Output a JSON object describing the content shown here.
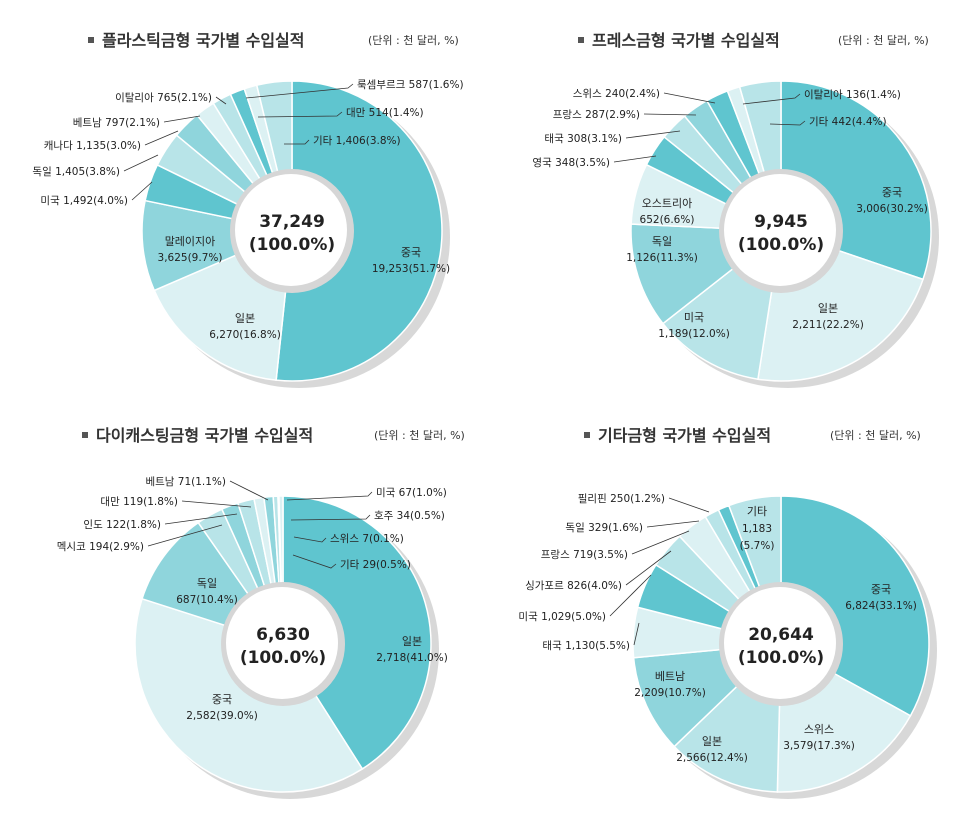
{
  "colors": {
    "dark": "#5fc5cf",
    "mid": "#8fd5dc",
    "light": "#b8e4e8",
    "pale": "#dcf1f3",
    "shadow": "#d8d8d8",
    "leader": "#333333"
  },
  "chart_data": [
    {
      "type": "pie",
      "title": "플라스틱금형 국가별 수입실적",
      "unit": "(단위 : 천 달러, %)",
      "total_value": "37,249",
      "total_pct": "(100.0%)",
      "slices": [
        {
          "name": "중국",
          "value": 19253,
          "pct": 51.7,
          "value_label": "19,253(51.7%)",
          "color": "dark"
        },
        {
          "name": "일본",
          "value": 6270,
          "pct": 16.8,
          "value_label": "6,270(16.8%)",
          "color": "pale"
        },
        {
          "name": "말레이지아",
          "value": 3625,
          "pct": 9.7,
          "value_label": "3,625(9.7%)",
          "color": "mid"
        },
        {
          "name": "미국",
          "value": 1492,
          "pct": 4.0,
          "label": "미국 1,492(4.0%)",
          "color": "dark"
        },
        {
          "name": "독일",
          "value": 1405,
          "pct": 3.8,
          "label": "독일 1,405(3.8%)",
          "color": "light"
        },
        {
          "name": "캐나다",
          "value": 1135,
          "pct": 3.0,
          "label": "캐나다 1,135(3.0%)",
          "color": "mid"
        },
        {
          "name": "베트남",
          "value": 797,
          "pct": 2.1,
          "label": "베트남 797(2.1%)",
          "color": "pale"
        },
        {
          "name": "이탈리아",
          "value": 765,
          "pct": 2.1,
          "label": "이탈리아 765(2.1%)",
          "color": "light"
        },
        {
          "name": "룩셈부르크",
          "value": 587,
          "pct": 1.6,
          "label": "룩셈부르크 587(1.6%)",
          "color": "dark"
        },
        {
          "name": "대만",
          "value": 514,
          "pct": 1.4,
          "label": "대만 514(1.4%)",
          "color": "pale"
        },
        {
          "name": "기타",
          "value": 1406,
          "pct": 3.8,
          "label": "기타 1,406(3.8%)",
          "color": "light"
        }
      ]
    },
    {
      "type": "pie",
      "title": "프레스금형 국가별 수입실적",
      "unit": "(단위 : 천 달러, %)",
      "total_value": "9,945",
      "total_pct": "(100.0%)",
      "slices": [
        {
          "name": "중국",
          "value": 3006,
          "pct": 30.2,
          "value_label": "3,006(30.2%)",
          "color": "dark"
        },
        {
          "name": "일본",
          "value": 2211,
          "pct": 22.2,
          "value_label": "2,211(22.2%)",
          "color": "pale"
        },
        {
          "name": "미국",
          "value": 1189,
          "pct": 12.0,
          "value_label": "1,189(12.0%)",
          "color": "light"
        },
        {
          "name": "독일",
          "value": 1126,
          "pct": 11.3,
          "value_label": "1,126(11.3%)",
          "color": "mid"
        },
        {
          "name": "오스트리아",
          "value": 652,
          "pct": 6.6,
          "value_label": "652(6.6%)",
          "color": "pale"
        },
        {
          "name": "영국",
          "value": 348,
          "pct": 3.5,
          "label": "영국 348(3.5%)",
          "color": "dark"
        },
        {
          "name": "태국",
          "value": 308,
          "pct": 3.1,
          "label": "태국 308(3.1%)",
          "color": "light"
        },
        {
          "name": "프랑스",
          "value": 287,
          "pct": 2.9,
          "label": "프랑스 287(2.9%)",
          "color": "mid"
        },
        {
          "name": "스위스",
          "value": 240,
          "pct": 2.4,
          "label": "스위스 240(2.4%)",
          "color": "dark"
        },
        {
          "name": "이탈리아",
          "value": 136,
          "pct": 1.4,
          "label": "이탈리아 136(1.4%)",
          "color": "pale"
        },
        {
          "name": "기타",
          "value": 442,
          "pct": 4.4,
          "label": "기타 442(4.4%)",
          "color": "light"
        }
      ]
    },
    {
      "type": "pie",
      "title": "다이캐스팅금형 국가별 수입실적",
      "unit": "(단위 : 천 달러, %)",
      "total_value": "6,630",
      "total_pct": "(100.0%)",
      "slices": [
        {
          "name": "일본",
          "value": 2718,
          "pct": 41.0,
          "value_label": "2,718(41.0%)",
          "color": "dark"
        },
        {
          "name": "중국",
          "value": 2582,
          "pct": 39.0,
          "value_label": "2,582(39.0%)",
          "color": "pale"
        },
        {
          "name": "독일",
          "value": 687,
          "pct": 10.4,
          "value_label": "687(10.4%)",
          "color": "mid"
        },
        {
          "name": "멕시코",
          "value": 194,
          "pct": 2.9,
          "label": "멕시코 194(2.9%)",
          "color": "light"
        },
        {
          "name": "인도",
          "value": 122,
          "pct": 1.8,
          "label": "인도 122(1.8%)",
          "color": "mid"
        },
        {
          "name": "대만",
          "value": 119,
          "pct": 1.8,
          "label": "대만 119(1.8%)",
          "color": "light"
        },
        {
          "name": "베트남",
          "value": 71,
          "pct": 1.1,
          "label": "베트남 71(1.1%)",
          "color": "pale"
        },
        {
          "name": "미국",
          "value": 67,
          "pct": 1.0,
          "label": "미국 67(1.0%)",
          "color": "mid"
        },
        {
          "name": "호주",
          "value": 34,
          "pct": 0.5,
          "label": "호주 34(0.5%)",
          "color": "light"
        },
        {
          "name": "스위스",
          "value": 7,
          "pct": 0.1,
          "label": "스위스 7(0.1%)",
          "color": "dark"
        },
        {
          "name": "기타",
          "value": 29,
          "pct": 0.5,
          "label": "기타 29(0.5%)",
          "color": "pale"
        }
      ]
    },
    {
      "type": "pie",
      "title": "기타금형 국가별 수입실적",
      "unit": "(단위 : 천 달러, %)",
      "total_value": "20,644",
      "total_pct": "(100.0%)",
      "slices": [
        {
          "name": "중국",
          "value": 6824,
          "pct": 33.1,
          "value_label": "6,824(33.1%)",
          "color": "dark"
        },
        {
          "name": "스위스",
          "value": 3579,
          "pct": 17.3,
          "value_label": "3,579(17.3%)",
          "color": "pale"
        },
        {
          "name": "일본",
          "value": 2566,
          "pct": 12.4,
          "value_label": "2,566(12.4%)",
          "color": "light"
        },
        {
          "name": "베트남",
          "value": 2209,
          "pct": 10.7,
          "value_label": "2,209(10.7%)",
          "color": "mid"
        },
        {
          "name": "태국",
          "value": 1130,
          "pct": 5.5,
          "label": "태국 1,130(5.5%)",
          "color": "pale"
        },
        {
          "name": "미국",
          "value": 1029,
          "pct": 5.0,
          "label": "미국 1,029(5.0%)",
          "color": "dark"
        },
        {
          "name": "싱가포르",
          "value": 826,
          "pct": 4.0,
          "label": "싱가포르 826(4.0%)",
          "color": "light"
        },
        {
          "name": "프랑스",
          "value": 719,
          "pct": 3.5,
          "label": "프랑스 719(3.5%)",
          "color": "pale"
        },
        {
          "name": "독일",
          "value": 329,
          "pct": 1.6,
          "label": "독일 329(1.6%)",
          "color": "light"
        },
        {
          "name": "필리핀",
          "value": 250,
          "pct": 1.2,
          "label": "필리핀 250(1.2%)",
          "color": "dark"
        },
        {
          "name": "기타",
          "value": 1183,
          "pct": 5.7,
          "value_label": "1,183",
          "value_pct": "(5.7%)",
          "color": "light"
        }
      ]
    }
  ]
}
